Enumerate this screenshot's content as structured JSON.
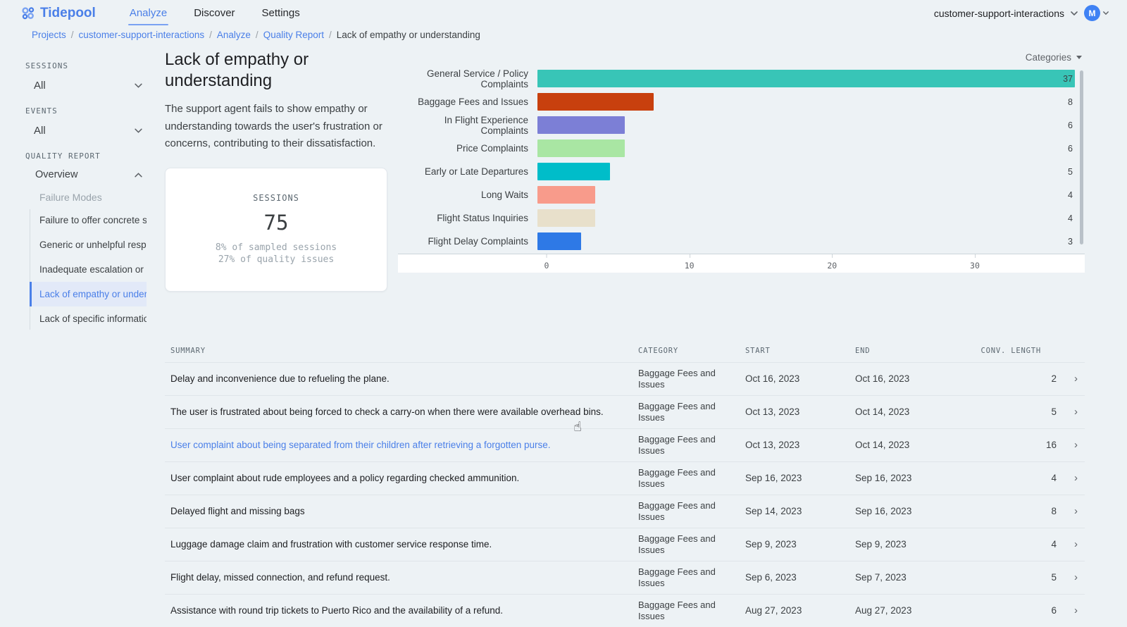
{
  "brand": {
    "name": "Tidepool"
  },
  "nav": {
    "tabs": [
      {
        "label": "Analyze",
        "active": true
      },
      {
        "label": "Discover",
        "active": false
      },
      {
        "label": "Settings",
        "active": false
      }
    ]
  },
  "header_right": {
    "project": "customer-support-interactions",
    "avatar_initial": "M"
  },
  "breadcrumb": {
    "items": [
      "Projects",
      "customer-support-interactions",
      "Analyze",
      "Quality Report",
      "Lack of empathy or understanding"
    ]
  },
  "sidebar": {
    "sessions_label": "SESSIONS",
    "sessions_value": "All",
    "events_label": "EVENTS",
    "events_value": "All",
    "quality_report_label": "QUALITY REPORT",
    "overview_label": "Overview",
    "failure_modes_label": "Failure Modes",
    "failure_modes": [
      {
        "label": "Failure to offer concrete s...",
        "selected": false
      },
      {
        "label": "Generic or unhelpful resp...",
        "selected": false
      },
      {
        "label": "Inadequate escalation or ...",
        "selected": false
      },
      {
        "label": "Lack of empathy or under...",
        "selected": true
      },
      {
        "label": "Lack of specific informatio...",
        "selected": false
      }
    ]
  },
  "page": {
    "title": "Lack of empathy or understanding",
    "description": "The support agent fails to show empathy or understanding towards the user's frustration or concerns, contributing to their dissatisfaction."
  },
  "stats_card": {
    "label": "SESSIONS",
    "value": "75",
    "line1": "8% of sampled sessions",
    "line2": "27% of quality issues"
  },
  "chart_data": {
    "type": "bar",
    "orientation": "horizontal",
    "group_by_label": "Categories",
    "categories": [
      "General Service / Policy Complaints",
      "Baggage Fees and Issues",
      "In Flight Experience Complaints",
      "Price Complaints",
      "Early or Late Departures",
      "Long Waits",
      "Flight Status Inquiries",
      "Flight Delay Complaints"
    ],
    "values": [
      37,
      8,
      6,
      6,
      5,
      4,
      4,
      3
    ],
    "colors": [
      "#38c5b7",
      "#c8400e",
      "#7c7fd6",
      "#a9e6a3",
      "#00bdc9",
      "#f89b8b",
      "#e8e0cb",
      "#2e79e6"
    ],
    "xticks": [
      0,
      10,
      20,
      30
    ],
    "xlim": [
      0,
      37.7
    ],
    "grid": false,
    "legend": false
  },
  "table": {
    "headers": [
      "SUMMARY",
      "CATEGORY",
      "START",
      "END",
      "CONV. LENGTH"
    ],
    "rows": [
      {
        "summary": "Delay and inconvenience due to refueling the plane.",
        "category": "Baggage Fees and Issues",
        "start": "Oct 16, 2023",
        "end": "Oct 16, 2023",
        "length": "2",
        "link": false
      },
      {
        "summary": "The user is frustrated about being forced to check a carry-on when there were available overhead bins.",
        "category": "Baggage Fees and Issues",
        "start": "Oct 13, 2023",
        "end": "Oct 14, 2023",
        "length": "5",
        "link": false
      },
      {
        "summary": "User complaint about being separated from their children after retrieving a forgotten purse.",
        "category": "Baggage Fees and Issues",
        "start": "Oct 13, 2023",
        "end": "Oct 14, 2023",
        "length": "16",
        "link": true
      },
      {
        "summary": "User complaint about rude employees and a policy regarding checked ammunition.",
        "category": "Baggage Fees and Issues",
        "start": "Sep 16, 2023",
        "end": "Sep 16, 2023",
        "length": "4",
        "link": false
      },
      {
        "summary": "Delayed flight and missing bags",
        "category": "Baggage Fees and Issues",
        "start": "Sep 14, 2023",
        "end": "Sep 16, 2023",
        "length": "8",
        "link": false
      },
      {
        "summary": "Luggage damage claim and frustration with customer service response time.",
        "category": "Baggage Fees and Issues",
        "start": "Sep 9, 2023",
        "end": "Sep 9, 2023",
        "length": "4",
        "link": false
      },
      {
        "summary": "Flight delay, missed connection, and refund request.",
        "category": "Baggage Fees and Issues",
        "start": "Sep 6, 2023",
        "end": "Sep 7, 2023",
        "length": "5",
        "link": false
      },
      {
        "summary": "Assistance with round trip tickets to Puerto Rico and the availability of a refund.",
        "category": "Baggage Fees and Issues",
        "start": "Aug 27, 2023",
        "end": "Aug 27, 2023",
        "length": "6",
        "link": false
      }
    ]
  },
  "cursor": {
    "glyph": "☝"
  }
}
